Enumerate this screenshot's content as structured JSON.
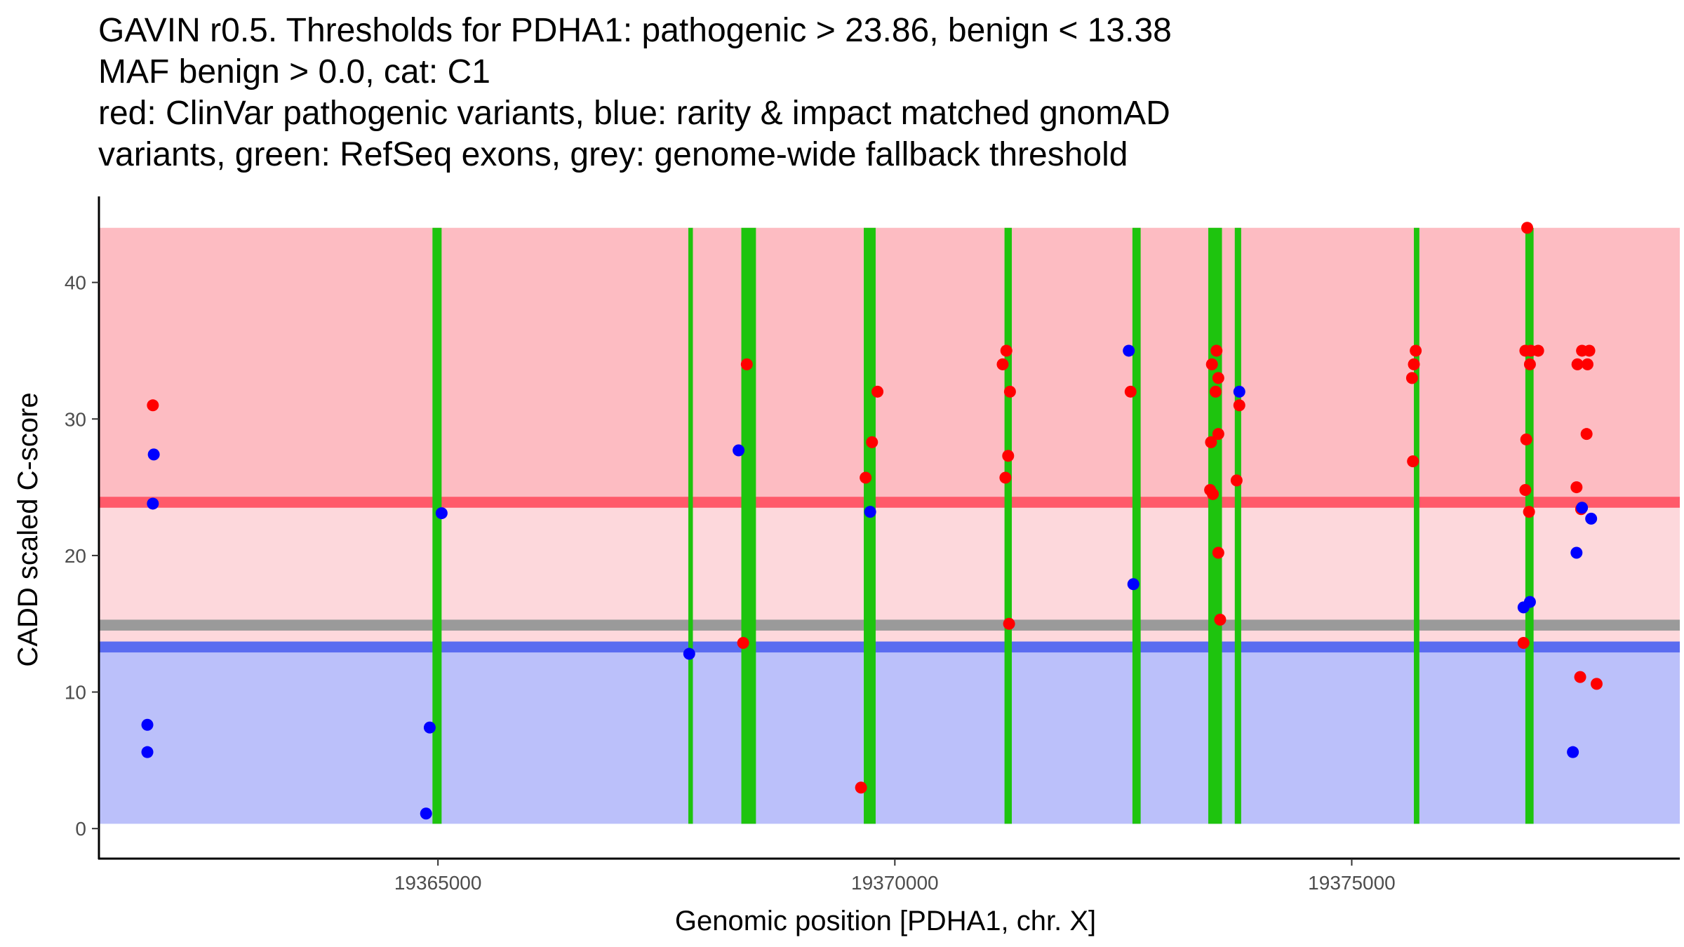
{
  "chart_data": {
    "type": "scatter",
    "title_lines": [
      "GAVIN r0.5. Thresholds for PDHA1: pathogenic > 23.86, benign < 13.38",
      "MAF benign > 0.0, cat: C1",
      "red: ClinVar pathogenic variants, blue: rarity & impact matched gnomAD",
      "variants, green: RefSeq exons, grey: genome-wide fallback threshold"
    ],
    "xlabel": "Genomic position [PDHA1, chr. X]",
    "ylabel": "CADD scaled C-score",
    "xlim": [
      19361290,
      19378590
    ],
    "ylim": [
      -2.2,
      46.3
    ],
    "x_ticks": [
      19365000,
      19370000,
      19375000
    ],
    "y_ticks": [
      0,
      10,
      20,
      30,
      40
    ],
    "colors": {
      "pathogenic_zone": "#fdbcc2",
      "pathogenic_threshold": "#ff5a6a",
      "middle_zone": "#fdd8dc",
      "fallback_threshold": "#9a9a9a",
      "benign_threshold": "#5a6cf0",
      "benign_zone": "#bbc0fa",
      "exon": "#1ec40e",
      "pathogenic_point": "#ff0000",
      "gnomad_point": "#0000ff"
    },
    "bands": {
      "pathogenic_zone": [
        23.86,
        44.0
      ],
      "middle_zone": [
        13.38,
        23.86
      ],
      "benign_zone": [
        0.35,
        13.38
      ],
      "pathogenic_threshold_line": [
        23.5,
        24.3
      ],
      "fallback_threshold_line": [
        14.5,
        15.3
      ],
      "benign_threshold_line": [
        12.9,
        13.7
      ]
    },
    "exons": [
      [
        19364940,
        19365040
      ],
      [
        19367740,
        19367790
      ],
      [
        19368320,
        19368480
      ],
      [
        19369660,
        19369790
      ],
      [
        19371200,
        19371280
      ],
      [
        19372600,
        19372690
      ],
      [
        19373430,
        19373580
      ],
      [
        19373720,
        19373790
      ],
      [
        19375680,
        19375740
      ],
      [
        19376900,
        19376990
      ]
    ],
    "series": [
      {
        "name": "ClinVar pathogenic variants",
        "color": "#ff0000",
        "points": [
          [
            19361880,
            31.0
          ],
          [
            19368380,
            34.0
          ],
          [
            19368340,
            13.6
          ],
          [
            19369630,
            3.0
          ],
          [
            19369680,
            25.7
          ],
          [
            19369750,
            28.3
          ],
          [
            19369810,
            32.0
          ],
          [
            19371180,
            34.0
          ],
          [
            19371220,
            35.0
          ],
          [
            19371260,
            32.0
          ],
          [
            19371240,
            27.3
          ],
          [
            19371210,
            25.7
          ],
          [
            19371250,
            15.0
          ],
          [
            19372580,
            32.0
          ],
          [
            19373470,
            34.0
          ],
          [
            19373520,
            35.0
          ],
          [
            19373540,
            33.0
          ],
          [
            19373510,
            32.0
          ],
          [
            19373540,
            28.9
          ],
          [
            19373460,
            28.3
          ],
          [
            19373450,
            24.8
          ],
          [
            19373480,
            24.5
          ],
          [
            19373540,
            20.2
          ],
          [
            19373560,
            15.3
          ],
          [
            19373770,
            31.0
          ],
          [
            19373740,
            25.5
          ],
          [
            19375660,
            33.0
          ],
          [
            19375680,
            34.0
          ],
          [
            19375700,
            35.0
          ],
          [
            19375670,
            26.9
          ],
          [
            19376920,
            44.0
          ],
          [
            19376900,
            35.0
          ],
          [
            19376960,
            35.0
          ],
          [
            19377040,
            35.0
          ],
          [
            19376950,
            34.0
          ],
          [
            19376910,
            28.5
          ],
          [
            19376900,
            24.8
          ],
          [
            19376940,
            23.2
          ],
          [
            19376880,
            13.6
          ],
          [
            19377460,
            25.0
          ],
          [
            19377470,
            34.0
          ],
          [
            19377520,
            35.0
          ],
          [
            19377580,
            34.0
          ],
          [
            19377600,
            35.0
          ],
          [
            19377570,
            28.9
          ],
          [
            19377510,
            23.4
          ],
          [
            19377500,
            11.1
          ],
          [
            19377680,
            10.6
          ]
        ]
      },
      {
        "name": "rarity & impact matched gnomAD variants",
        "color": "#0000ff",
        "points": [
          [
            19361820,
            7.6
          ],
          [
            19361820,
            5.6
          ],
          [
            19361890,
            27.4
          ],
          [
            19361880,
            23.8
          ],
          [
            19364870,
            1.1
          ],
          [
            19364910,
            7.4
          ],
          [
            19365040,
            23.1
          ],
          [
            19367750,
            12.8
          ],
          [
            19368290,
            27.7
          ],
          [
            19369730,
            23.2
          ],
          [
            19372560,
            35.0
          ],
          [
            19372610,
            17.9
          ],
          [
            19373770,
            32.0
          ],
          [
            19376880,
            16.2
          ],
          [
            19376950,
            16.6
          ],
          [
            19377420,
            5.6
          ],
          [
            19377460,
            20.2
          ],
          [
            19377520,
            23.5
          ],
          [
            19377620,
            22.7
          ]
        ]
      }
    ]
  }
}
